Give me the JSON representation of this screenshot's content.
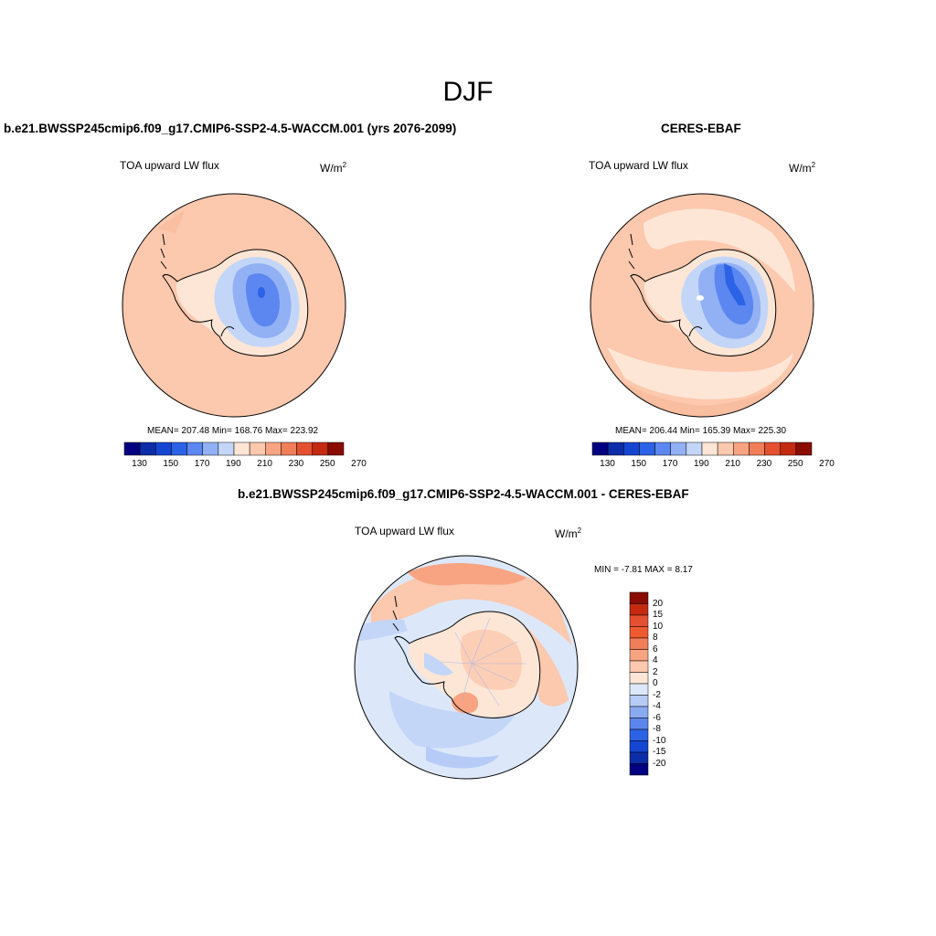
{
  "figure": {
    "season": "DJF",
    "unit_base": "W/m",
    "unit_exp": "2"
  },
  "panels": [
    {
      "title": "b.e21.BWSSP245cmip6.f09_g17.CMIP6-SSP2-4.5-WACCM.001 (yrs 2076-2099)",
      "variable": "TOA upward LW flux",
      "stats": "MEAN= 207.48  Min= 168.76  Max= 223.92"
    },
    {
      "title": "CERES-EBAF",
      "variable": "TOA upward LW flux",
      "stats": "MEAN= 206.44  Min= 165.39  Max= 225.30"
    },
    {
      "title": "b.e21.BWSSP245cmip6.f09_g17.CMIP6-SSP2-4.5-WACCM.001 - CERES-EBAF",
      "variable": "TOA upward LW flux",
      "stats": "MIN =  -7.81 MAX =   8.17"
    }
  ],
  "colorbar_abs": {
    "tick_labels": [
      "130",
      "150",
      "170",
      "190",
      "210",
      "230",
      "250",
      "270"
    ],
    "colors": [
      "#000080",
      "#0c2ca8",
      "#1446d2",
      "#2c62e6",
      "#5c86f0",
      "#92b0f4",
      "#c4d6f8",
      "#fde6d6",
      "#fcc8ae",
      "#f8a482",
      "#f07e58",
      "#e45030",
      "#c42a10",
      "#8a0c00"
    ]
  },
  "colorbar_diff": {
    "tick_labels": [
      "20",
      "15",
      "10",
      "8",
      "6",
      "4",
      "2",
      "0",
      "-2",
      "-4",
      "-6",
      "-8",
      "-10",
      "-15",
      "-20"
    ],
    "colors": [
      "#8a0c00",
      "#c42a10",
      "#e45030",
      "#f05a30",
      "#f07e58",
      "#f8a482",
      "#fcc8ae",
      "#fde6d6",
      "#dce8fa",
      "#b6ccf6",
      "#8aaaf0",
      "#5c86ec",
      "#2c62e6",
      "#1446d2",
      "#0c2ca8",
      "#000080"
    ]
  }
}
